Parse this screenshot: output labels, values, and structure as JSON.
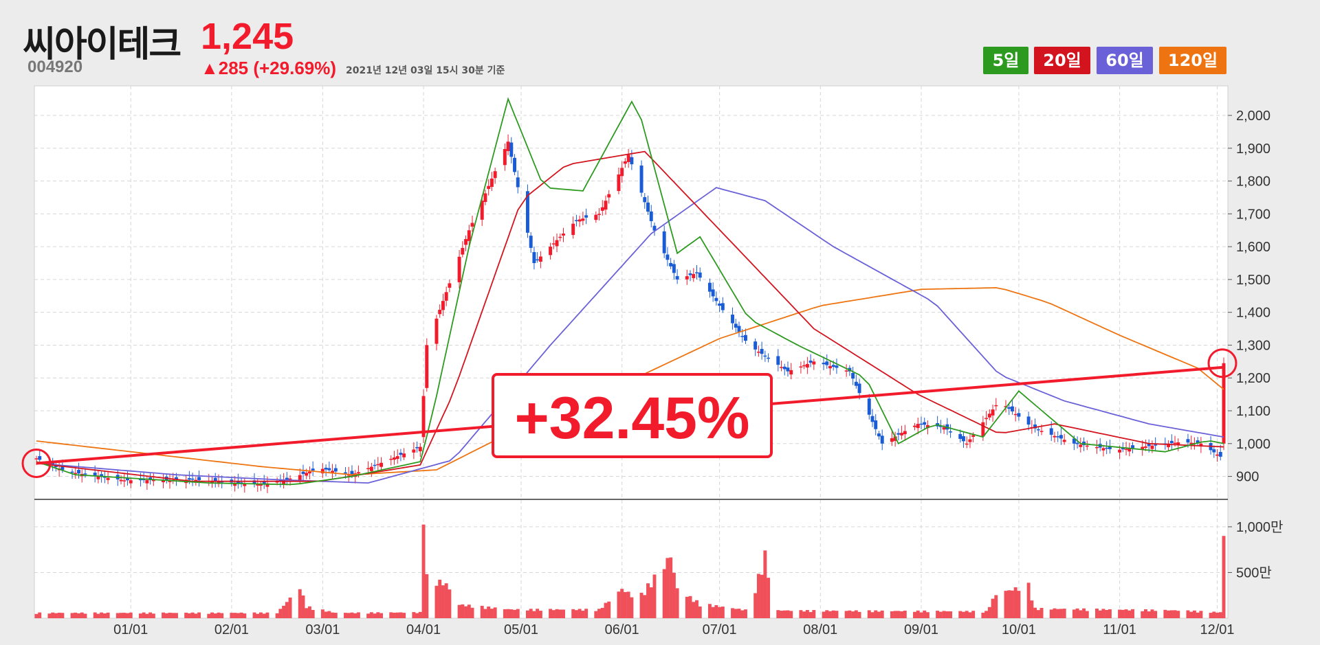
{
  "stock": {
    "name": "씨아이테크",
    "code": "004920",
    "price": "1,245",
    "change": "▲285 (+29.69%)",
    "timestamp": "2021년 12년 03일 15시 30분 기준"
  },
  "legend": [
    {
      "label": "5일",
      "color": "#2c9a1f"
    },
    {
      "label": "20일",
      "color": "#d3141f"
    },
    {
      "label": "60일",
      "color": "#6a60d8"
    },
    {
      "label": "120일",
      "color": "#ee7411"
    }
  ],
  "chart_data": {
    "type": "candlestick",
    "colors": {
      "up": "#f21b2c",
      "down": "#1a5cd6",
      "ma5": "#2c9a1f",
      "ma20": "#d3141f",
      "ma60": "#6a60d8",
      "ma120": "#ee7411",
      "volume": "#f0505a",
      "trend": "#f21b2c"
    },
    "x_ticks": [
      "01/01",
      "02/01",
      "03/01",
      "04/01",
      "05/01",
      "06/01",
      "07/01",
      "08/01",
      "09/01",
      "10/01",
      "11/01",
      "12/01"
    ],
    "x_range": [
      "2020-12-03",
      "2021-12-03"
    ],
    "price_axis": {
      "ticks": [
        "2,000",
        "1,900",
        "1,800",
        "1,700",
        "1,600",
        "1,500",
        "1,400",
        "1,300",
        "1,200",
        "1,100",
        "1,000",
        "900"
      ],
      "range": [
        830,
        2090
      ]
    },
    "volume_axis": {
      "ticks": [
        "1,000만",
        "500만"
      ],
      "range": [
        0,
        1300
      ],
      "unit": "만"
    },
    "change_annotation": "+32.45%",
    "trend": {
      "start": {
        "date": "2020-12-03",
        "price": 940
      },
      "end": {
        "date": "2021-12-03",
        "price": 1245
      }
    },
    "ohlc_anchors": [
      [
        "2020-12-03",
        955
      ],
      [
        "2020-12-12",
        915
      ],
      [
        "2020-12-30",
        888
      ],
      [
        "2021-01-20",
        890
      ],
      [
        "2021-02-10",
        875
      ],
      [
        "2021-02-18",
        890
      ],
      [
        "2021-02-28",
        925
      ],
      [
        "2021-03-10",
        905
      ],
      [
        "2021-03-31",
        990
      ],
      [
        "2021-04-02",
        1300
      ],
      [
        "2021-04-15",
        1650
      ],
      [
        "2021-04-27",
        1920
      ],
      [
        "2021-05-05",
        1550
      ],
      [
        "2021-05-18",
        1680
      ],
      [
        "2021-05-25",
        1700
      ],
      [
        "2021-06-03",
        1880
      ],
      [
        "2021-06-12",
        1620
      ],
      [
        "2021-06-18",
        1500
      ],
      [
        "2021-06-24",
        1520
      ],
      [
        "2021-07-01",
        1420
      ],
      [
        "2021-07-10",
        1300
      ],
      [
        "2021-07-22",
        1220
      ],
      [
        "2021-07-30",
        1250
      ],
      [
        "2021-08-10",
        1220
      ],
      [
        "2021-08-20",
        1000
      ],
      [
        "2021-08-31",
        1060
      ],
      [
        "2021-09-08",
        1050
      ],
      [
        "2021-09-15",
        1000
      ],
      [
        "2021-09-25",
        1130
      ],
      [
        "2021-10-05",
        1050
      ],
      [
        "2021-10-18",
        1000
      ],
      [
        "2021-10-31",
        980
      ],
      [
        "2021-11-20",
        1005
      ],
      [
        "2021-11-26",
        1000
      ],
      [
        "2021-12-02",
        960
      ],
      [
        "2021-12-03",
        1245
      ]
    ],
    "ma5": [
      [
        "2020-12-03",
        945
      ],
      [
        "2020-12-15",
        905
      ],
      [
        "2021-01-25",
        880
      ],
      [
        "2021-02-20",
        875
      ],
      [
        "2021-03-10",
        900
      ],
      [
        "2021-03-31",
        945
      ],
      [
        "2021-04-04",
        1100
      ],
      [
        "2021-04-15",
        1600
      ],
      [
        "2021-04-27",
        2050
      ],
      [
        "2021-05-08",
        1780
      ],
      [
        "2021-05-20",
        1770
      ],
      [
        "2021-06-05",
        2060
      ],
      [
        "2021-06-18",
        1580
      ],
      [
        "2021-06-25",
        1630
      ],
      [
        "2021-07-10",
        1380
      ],
      [
        "2021-07-25",
        1300
      ],
      [
        "2021-08-15",
        1200
      ],
      [
        "2021-08-25",
        1000
      ],
      [
        "2021-09-05",
        1060
      ],
      [
        "2021-09-20",
        1020
      ],
      [
        "2021-10-01",
        1160
      ],
      [
        "2021-10-20",
        1000
      ],
      [
        "2021-11-15",
        975
      ],
      [
        "2021-11-28",
        1010
      ],
      [
        "2021-12-03",
        1000
      ]
    ],
    "ma20": [
      [
        "2020-12-03",
        940
      ],
      [
        "2021-01-20",
        885
      ],
      [
        "2021-02-28",
        885
      ],
      [
        "2021-03-31",
        935
      ],
      [
        "2021-04-10",
        1150
      ],
      [
        "2021-05-01",
        1740
      ],
      [
        "2021-05-15",
        1850
      ],
      [
        "2021-06-08",
        1890
      ],
      [
        "2021-07-05",
        1610
      ],
      [
        "2021-07-30",
        1350
      ],
      [
        "2021-08-31",
        1150
      ],
      [
        "2021-09-25",
        1030
      ],
      [
        "2021-10-12",
        1060
      ],
      [
        "2021-11-10",
        1000
      ],
      [
        "2021-12-03",
        990
      ]
    ],
    "ma60": [
      [
        "2020-12-03",
        940
      ],
      [
        "2021-01-15",
        905
      ],
      [
        "2021-02-15",
        890
      ],
      [
        "2021-03-15",
        880
      ],
      [
        "2021-04-10",
        950
      ],
      [
        "2021-05-10",
        1300
      ],
      [
        "2021-06-10",
        1640
      ],
      [
        "2021-06-30",
        1780
      ],
      [
        "2021-07-15",
        1740
      ],
      [
        "2021-08-05",
        1600
      ],
      [
        "2021-09-05",
        1430
      ],
      [
        "2021-09-25",
        1210
      ],
      [
        "2021-10-15",
        1130
      ],
      [
        "2021-11-10",
        1060
      ],
      [
        "2021-12-03",
        1020
      ]
    ],
    "ma120": [
      [
        "2020-12-03",
        1008
      ],
      [
        "2021-02-10",
        930
      ],
      [
        "2021-03-10",
        905
      ],
      [
        "2021-04-05",
        920
      ],
      [
        "2021-05-01",
        1050
      ],
      [
        "2021-06-01",
        1180
      ],
      [
        "2021-07-01",
        1320
      ],
      [
        "2021-08-01",
        1420
      ],
      [
        "2021-09-01",
        1470
      ],
      [
        "2021-09-25",
        1475
      ],
      [
        "2021-10-10",
        1430
      ],
      [
        "2021-11-01",
        1330
      ],
      [
        "2021-11-25",
        1230
      ],
      [
        "2021-12-03",
        1165
      ]
    ],
    "volume_anchors": [
      [
        "2020-12-03",
        55
      ],
      [
        "2021-02-15",
        55
      ],
      [
        "2021-02-22",
        320
      ],
      [
        "2021-02-24",
        120
      ],
      [
        "2021-03-05",
        55
      ],
      [
        "2021-03-31",
        60
      ],
      [
        "2021-04-01",
        1200
      ],
      [
        "2021-04-02",
        420
      ],
      [
        "2021-04-08",
        350
      ],
      [
        "2021-04-12",
        140
      ],
      [
        "2021-04-28",
        90
      ],
      [
        "2021-05-25",
        90
      ],
      [
        "2021-06-01",
        300
      ],
      [
        "2021-06-06",
        200
      ],
      [
        "2021-06-16",
        640
      ],
      [
        "2021-06-18",
        300
      ],
      [
        "2021-06-25",
        150
      ],
      [
        "2021-07-10",
        80
      ],
      [
        "2021-07-15",
        650
      ],
      [
        "2021-07-18",
        80
      ],
      [
        "2021-09-21",
        70
      ],
      [
        "2021-09-24",
        250
      ],
      [
        "2021-10-04",
        340
      ],
      [
        "2021-10-06",
        100
      ],
      [
        "2021-11-20",
        80
      ],
      [
        "2021-12-02",
        60
      ],
      [
        "2021-12-03",
        900
      ]
    ]
  }
}
